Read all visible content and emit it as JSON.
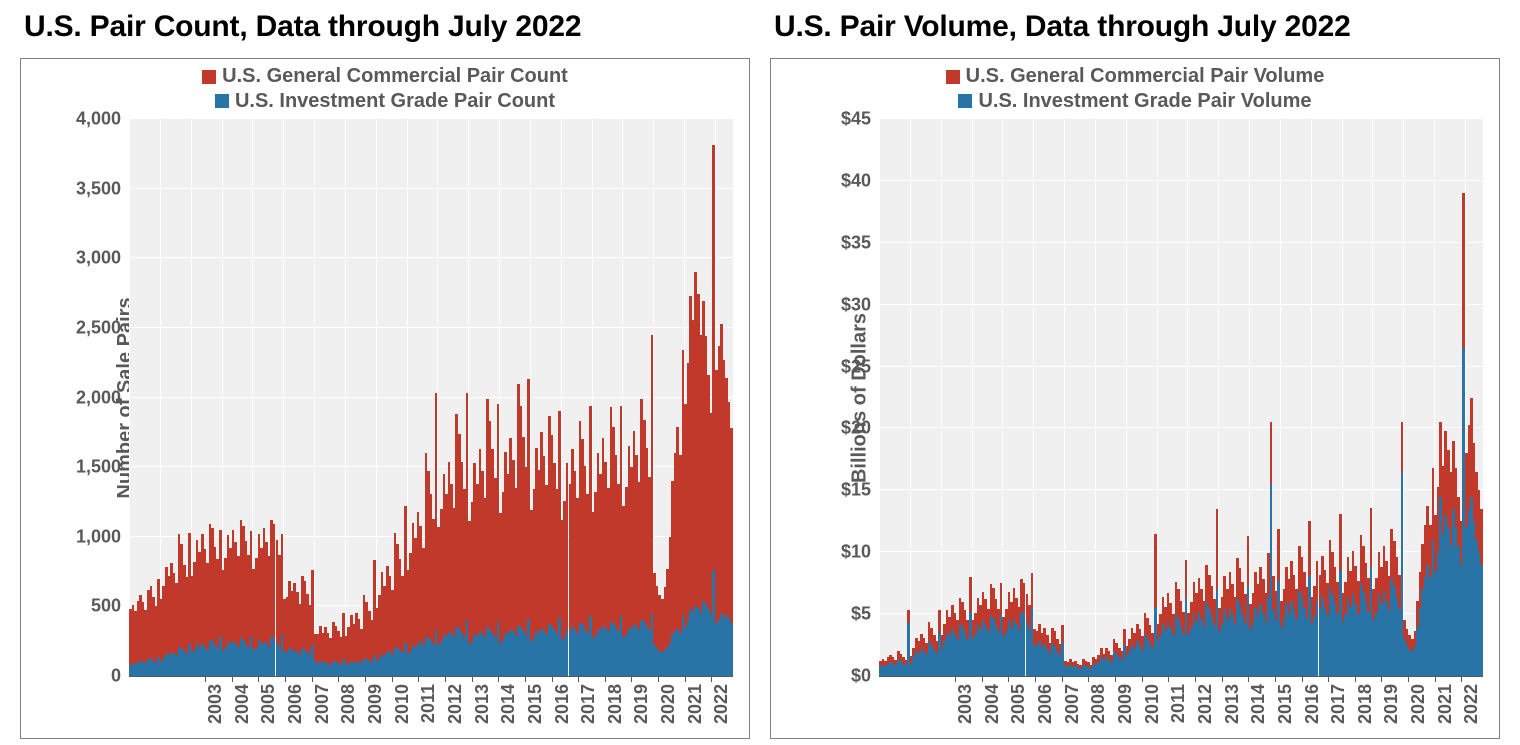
{
  "colors": {
    "red": "#c0392b",
    "blue": "#2874a6",
    "plot_bg": "#f0f0f0",
    "grid": "#ffffff",
    "border": "#7f7f7f",
    "text": "#595959"
  },
  "charts": [
    {
      "title": "U.S. Pair Count, Data through July 2022",
      "ylabel": "Number of Sale Pairs",
      "legend": [
        {
          "label": "U.S. General Commercial Pair Count",
          "color": "#c0392b"
        },
        {
          "label": "U.S. Investment Grade Pair Count",
          "color": "#2874a6"
        }
      ],
      "type": "stacked-bar",
      "ylim": [
        0,
        4000
      ],
      "ytick_step": 500,
      "ytick_format": "comma",
      "x_years": [
        2003,
        2004,
        2005,
        2006,
        2007,
        2008,
        2009,
        2010,
        2011,
        2012,
        2013,
        2014,
        2015,
        2016,
        2017,
        2018,
        2019,
        2020,
        2021,
        2022
      ],
      "months_per_year": 12,
      "months_last_year": 7,
      "series_blue": [
        80,
        90,
        85,
        100,
        110,
        100,
        95,
        120,
        130,
        110,
        95,
        140,
        100,
        130,
        160,
        150,
        170,
        160,
        150,
        210,
        200,
        180,
        160,
        230,
        170,
        190,
        240,
        210,
        230,
        210,
        190,
        260,
        250,
        220,
        200,
        280,
        180,
        200,
        250,
        230,
        250,
        240,
        210,
        280,
        260,
        230,
        210,
        290,
        190,
        200,
        260,
        230,
        250,
        240,
        210,
        280,
        270,
        240,
        210,
        300,
        170,
        170,
        200,
        180,
        190,
        170,
        150,
        200,
        190,
        170,
        150,
        220,
        100,
        90,
        110,
        90,
        100,
        90,
        80,
        110,
        100,
        90,
        80,
        120,
        80,
        90,
        100,
        90,
        100,
        110,
        90,
        130,
        120,
        110,
        100,
        150,
        110,
        130,
        160,
        150,
        170,
        180,
        160,
        210,
        200,
        190,
        170,
        240,
        160,
        180,
        220,
        210,
        230,
        250,
        220,
        280,
        270,
        260,
        230,
        330,
        220,
        250,
        300,
        290,
        320,
        300,
        280,
        350,
        340,
        310,
        280,
        400,
        230,
        250,
        300,
        290,
        320,
        310,
        280,
        350,
        330,
        310,
        280,
        390,
        240,
        260,
        310,
        300,
        330,
        320,
        290,
        360,
        350,
        320,
        290,
        410,
        250,
        270,
        320,
        310,
        340,
        330,
        300,
        370,
        360,
        330,
        300,
        420,
        260,
        280,
        330,
        320,
        350,
        340,
        310,
        380,
        370,
        340,
        310,
        430,
        270,
        290,
        340,
        330,
        360,
        350,
        320,
        390,
        380,
        350,
        320,
        440,
        280,
        300,
        350,
        340,
        370,
        360,
        330,
        400,
        390,
        360,
        330,
        450,
        220,
        200,
        180,
        170,
        190,
        210,
        240,
        300,
        320,
        340,
        310,
        440,
        350,
        400,
        480,
        460,
        500,
        490,
        450,
        540,
        520,
        480,
        440,
        760,
        380,
        400,
        450,
        420,
        440,
        420,
        380
      ],
      "series_red": [
        400,
        420,
        380,
        440,
        470,
        430,
        380,
        500,
        520,
        460,
        410,
        560,
        450,
        520,
        620,
        570,
        640,
        580,
        520,
        810,
        750,
        620,
        550,
        800,
        550,
        630,
        740,
        680,
        790,
        700,
        620,
        830,
        810,
        710,
        640,
        770,
        580,
        650,
        760,
        690,
        800,
        720,
        650,
        840,
        820,
        740,
        660,
        750,
        580,
        650,
        760,
        690,
        810,
        720,
        650,
        840,
        820,
        740,
        660,
        720,
        380,
        400,
        480,
        430,
        480,
        430,
        370,
        520,
        490,
        420,
        360,
        540,
        200,
        210,
        250,
        220,
        250,
        220,
        190,
        280,
        260,
        230,
        200,
        330,
        210,
        260,
        340,
        280,
        350,
        300,
        250,
        450,
        410,
        360,
        300,
        680,
        380,
        450,
        590,
        500,
        620,
        540,
        460,
        820,
        750,
        650,
        550,
        980,
        600,
        700,
        880,
        780,
        950,
        830,
        700,
        1320,
        1200,
        1050,
        900,
        1700,
        850,
        950,
        1150,
        1020,
        1220,
        1080,
        930,
        1530,
        1400,
        1230,
        1060,
        1630,
        880,
        1000,
        1230,
        1090,
        1310,
        1160,
        1000,
        1640,
        1500,
        1320,
        1140,
        1560,
        930,
        1060,
        1300,
        1150,
        1380,
        1230,
        1060,
        1740,
        1590,
        1400,
        1210,
        1720,
        940,
        1070,
        1320,
        1170,
        1410,
        1250,
        1070,
        1500,
        1370,
        1200,
        1040,
        1480,
        860,
        980,
        1200,
        1060,
        1280,
        1130,
        970,
        1450,
        1330,
        1170,
        1000,
        1510,
        910,
        1030,
        1260,
        1120,
        1350,
        1190,
        1030,
        1540,
        1410,
        1240,
        1060,
        1500,
        940,
        1060,
        1300,
        1160,
        1390,
        1230,
        1060,
        1590,
        1450,
        1280,
        1100,
        2000,
        520,
        450,
        400,
        380,
        450,
        560,
        760,
        1100,
        1280,
        1450,
        1280,
        1900,
        1600,
        1850,
        2250,
        2100,
        2400,
        2250,
        2000,
        2150,
        1920,
        1680,
        1450,
        3050,
        1820,
        1970,
        2080,
        1850,
        1700,
        1550,
        1400
      ],
      "label_fontsize": 20,
      "title_fontsize": 30
    },
    {
      "title": "U.S. Pair Volume, Data through July 2022",
      "ylabel": "Billions of Dollars",
      "legend": [
        {
          "label": "U.S. General Commercial Pair Volume",
          "color": "#c0392b"
        },
        {
          "label": "U.S. Investment Grade Pair Volume",
          "color": "#2874a6"
        }
      ],
      "type": "stacked-bar",
      "ylim": [
        0,
        45
      ],
      "ytick_step": 5,
      "ytick_format": "dollar",
      "x_years": [
        2003,
        2004,
        2005,
        2006,
        2007,
        2008,
        2009,
        2010,
        2011,
        2012,
        2013,
        2014,
        2015,
        2016,
        2017,
        2018,
        2019,
        2020,
        2021,
        2022
      ],
      "months_per_year": 12,
      "months_last_year": 7,
      "series_blue": [
        0.8,
        0.9,
        0.8,
        1.0,
        1.1,
        1.0,
        0.9,
        1.3,
        1.2,
        1.0,
        0.9,
        4.3,
        1.0,
        1.5,
        2.0,
        1.8,
        2.2,
        2.0,
        1.8,
        2.8,
        2.5,
        2.1,
        1.8,
        3.5,
        2.2,
        2.8,
        3.5,
        3.2,
        3.8,
        3.4,
        3.0,
        4.2,
        4.0,
        3.5,
        3.0,
        5.2,
        3.0,
        3.4,
        4.2,
        3.8,
        4.5,
        4.1,
        3.6,
        4.9,
        4.7,
        4.1,
        3.6,
        5.0,
        3.2,
        3.6,
        4.5,
        4.0,
        4.7,
        4.2,
        3.7,
        5.2,
        5.0,
        4.4,
        3.8,
        5.5,
        2.5,
        2.4,
        2.8,
        2.3,
        2.6,
        2.2,
        1.8,
        2.6,
        2.4,
        2.0,
        1.7,
        2.7,
        0.8,
        0.7,
        0.9,
        0.7,
        0.8,
        0.7,
        0.6,
        0.9,
        0.8,
        0.7,
        0.6,
        1.0,
        0.9,
        1.1,
        1.5,
        1.2,
        1.5,
        1.3,
        1.1,
        2.0,
        1.8,
        1.5,
        1.3,
        2.5,
        1.6,
        2.0,
        2.6,
        2.3,
        2.8,
        2.5,
        2.1,
        3.4,
        3.1,
        2.7,
        2.3,
        5.5,
        2.8,
        3.3,
        4.2,
        3.7,
        4.4,
        3.9,
        3.3,
        5.0,
        4.6,
        4.0,
        3.4,
        6.2,
        3.4,
        4.0,
        5.0,
        4.4,
        5.2,
        4.6,
        4.0,
        5.9,
        5.4,
        4.8,
        4.1,
        7.0,
        3.6,
        4.2,
        5.3,
        4.6,
        5.5,
        4.9,
        4.2,
        6.2,
        5.7,
        5.0,
        4.3,
        7.3,
        3.8,
        4.4,
        5.5,
        4.9,
        5.8,
        5.1,
        4.4,
        6.5,
        15.5,
        5.3,
        4.5,
        7.7,
        4.0,
        4.6,
        5.8,
        5.1,
        6.1,
        5.4,
        4.6,
        6.9,
        6.3,
        5.5,
        4.7,
        8.1,
        4.2,
        4.8,
        6.1,
        5.4,
        6.4,
        5.6,
        4.9,
        7.2,
        6.6,
        5.8,
        5.0,
        8.5,
        4.4,
        5.0,
        6.3,
        5.6,
        6.6,
        5.8,
        5.0,
        7.5,
        6.9,
        6.0,
        5.2,
        8.8,
        4.6,
        5.2,
        6.6,
        5.8,
        6.9,
        6.1,
        5.3,
        7.8,
        7.2,
        6.3,
        5.4,
        16.5,
        3.0,
        2.5,
        2.2,
        2.0,
        2.4,
        4.0,
        5.5,
        7.0,
        8.0,
        9.0,
        8.0,
        11.0,
        8.5,
        10.0,
        14.5,
        11.5,
        13.0,
        12.0,
        10.5,
        13.5,
        12.0,
        10.5,
        9.0,
        26.5,
        12.0,
        13.5,
        14.5,
        12.5,
        11.0,
        10.0,
        9.0
      ],
      "series_red": [
        0.4,
        0.5,
        0.4,
        0.5,
        0.6,
        0.5,
        0.4,
        0.7,
        0.6,
        0.5,
        0.4,
        1.0,
        0.6,
        0.8,
        1.1,
        1.0,
        1.2,
        1.1,
        0.9,
        1.6,
        1.4,
        1.2,
        1.0,
        1.8,
        1.1,
        1.4,
        1.8,
        1.6,
        1.9,
        1.7,
        1.5,
        2.1,
        2.0,
        1.8,
        1.5,
        2.8,
        1.5,
        1.7,
        2.1,
        1.9,
        2.3,
        2.1,
        1.8,
        2.5,
        2.4,
        2.1,
        1.8,
        2.5,
        1.6,
        1.8,
        2.3,
        2.0,
        2.4,
        2.1,
        1.9,
        2.6,
        2.5,
        2.2,
        1.9,
        2.8,
        1.3,
        1.2,
        1.4,
        1.2,
        1.3,
        1.1,
        0.9,
        1.3,
        1.2,
        1.0,
        0.9,
        1.4,
        0.4,
        0.4,
        0.5,
        0.4,
        0.4,
        0.3,
        0.3,
        0.5,
        0.4,
        0.4,
        0.3,
        0.5,
        0.5,
        0.6,
        0.8,
        0.6,
        0.8,
        0.7,
        0.6,
        1.0,
        0.9,
        0.8,
        0.7,
        1.3,
        0.8,
        1.0,
        1.3,
        1.2,
        1.4,
        1.3,
        1.1,
        1.7,
        1.6,
        1.4,
        1.2,
        6.0,
        1.4,
        1.7,
        2.2,
        1.9,
        2.3,
        2.0,
        1.7,
        2.6,
        2.4,
        2.1,
        1.8,
        3.2,
        1.7,
        2.0,
        2.6,
        2.3,
        2.7,
        2.4,
        2.1,
        3.1,
        2.8,
        2.5,
        2.1,
        6.5,
        1.9,
        2.2,
        2.8,
        2.4,
        2.9,
        2.5,
        2.2,
        3.3,
        3.0,
        2.6,
        2.3,
        4.0,
        2.0,
        2.3,
        2.9,
        2.5,
        3.0,
        2.7,
        2.3,
        3.4,
        5.0,
        2.8,
        2.4,
        4.2,
        2.1,
        2.4,
        3.0,
        2.7,
        3.2,
        2.8,
        2.4,
        3.6,
        3.3,
        2.9,
        2.5,
        4.4,
        2.2,
        2.5,
        3.2,
        2.8,
        3.3,
        3.0,
        2.6,
        3.8,
        3.4,
        3.0,
        2.6,
        4.6,
        2.3,
        2.6,
        3.3,
        2.9,
        3.5,
        3.1,
        2.7,
        3.9,
        3.6,
        3.1,
        2.7,
        4.8,
        2.4,
        2.7,
        3.4,
        3.0,
        3.6,
        3.2,
        2.8,
        4.1,
        3.7,
        3.3,
        2.8,
        4.0,
        1.5,
        1.3,
        1.1,
        1.0,
        1.2,
        2.1,
        2.9,
        3.7,
        4.2,
        4.7,
        4.2,
        5.8,
        4.5,
        5.3,
        6.0,
        5.5,
        6.8,
        6.3,
        6.0,
        5.5,
        4.8,
        4.0,
        3.5,
        12.5,
        6.0,
        6.8,
        8.0,
        6.3,
        5.5,
        5.0,
        4.5
      ],
      "label_fontsize": 20,
      "title_fontsize": 30
    }
  ]
}
